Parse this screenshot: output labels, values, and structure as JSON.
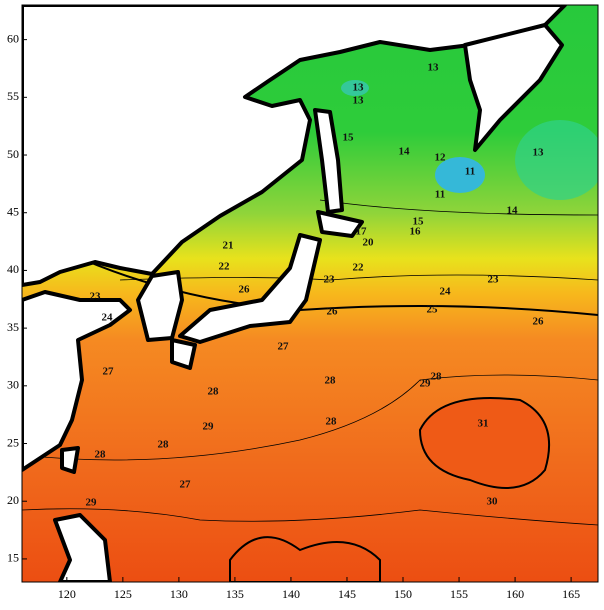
{
  "map": {
    "xlim": [
      116,
      167.4
    ],
    "ylim": [
      13,
      63
    ],
    "xticks": [
      120,
      125,
      130,
      135,
      140,
      145,
      150,
      155,
      160,
      165
    ],
    "yticks": [
      15,
      20,
      25,
      30,
      35,
      40,
      45,
      50,
      55,
      60
    ],
    "contour_labels": [
      "13",
      "13",
      "13",
      "15",
      "14",
      "12",
      "11",
      "11",
      "13",
      "14",
      "15",
      "17",
      "16",
      "20",
      "21",
      "22",
      "22",
      "23",
      "23",
      "26",
      "24",
      "25",
      "26",
      "26",
      "23",
      "24",
      "27",
      "27",
      "28",
      "28",
      "28",
      "29",
      "28",
      "31",
      "29",
      "28",
      "28",
      "27",
      "30",
      "29"
    ]
  }
}
